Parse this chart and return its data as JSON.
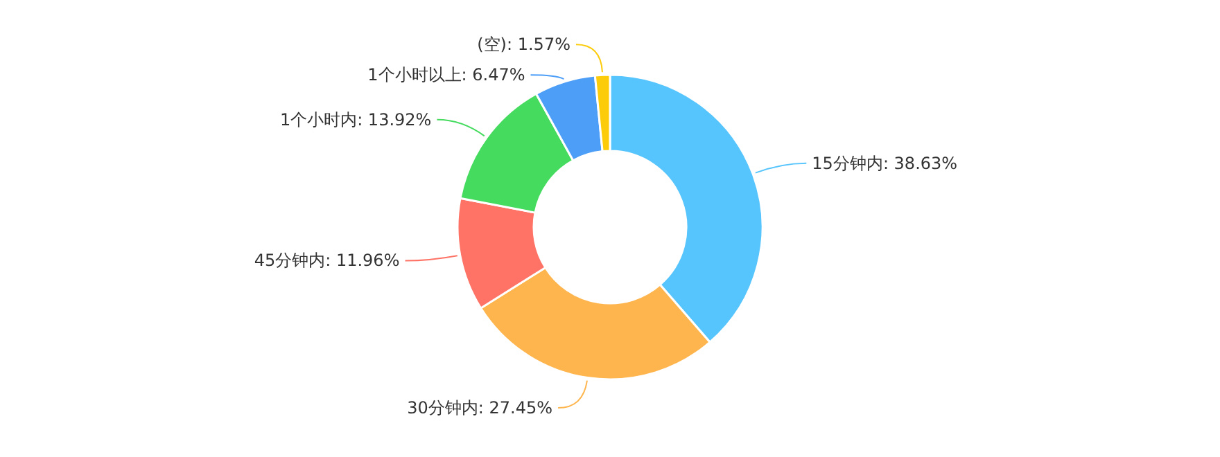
{
  "chart_data": {
    "type": "donut",
    "categories": [
      "15分钟内",
      "30分钟内",
      "45分钟内",
      "1个小时内",
      "1个小时以上",
      "(空)"
    ],
    "values": [
      38.63,
      27.45,
      11.96,
      13.92,
      6.47,
      1.57
    ],
    "colors": [
      "#57c5fd",
      "#ffb54d",
      "#ff7366",
      "#45db5e",
      "#4d9ef7",
      "#fccb0a"
    ],
    "value_labels": [
      ": 38.63%",
      ": 27.45%",
      ": 11.96%",
      ": 13.92%",
      ": 6.47%",
      ": 1.57%"
    ]
  }
}
